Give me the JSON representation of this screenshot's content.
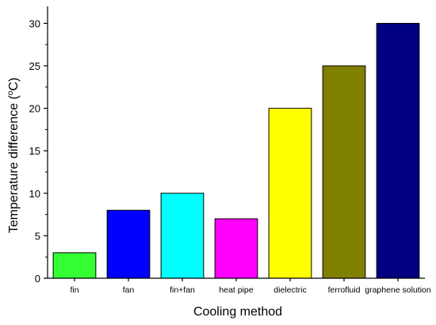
{
  "chart_data": {
    "type": "bar",
    "title": "",
    "xlabel": "Cooling method",
    "ylabel_main": "Temperature difference (",
    "ylabel_unit_sup": "o",
    "ylabel_unit": "C)",
    "ylim": [
      0,
      32
    ],
    "yticks": [
      0,
      5,
      10,
      15,
      20,
      25,
      30
    ],
    "grid": false,
    "legend": "none",
    "categories": [
      "fin",
      "fan",
      "fin+fan",
      "heat pipe",
      "dielectric",
      "ferrofluid",
      "graphene solution"
    ],
    "values": [
      3,
      8,
      10,
      7,
      20,
      25,
      30
    ],
    "colors": [
      "#33ff33",
      "#0000ff",
      "#00ffff",
      "#ff00ff",
      "#ffff00",
      "#808000",
      "#000080"
    ]
  }
}
